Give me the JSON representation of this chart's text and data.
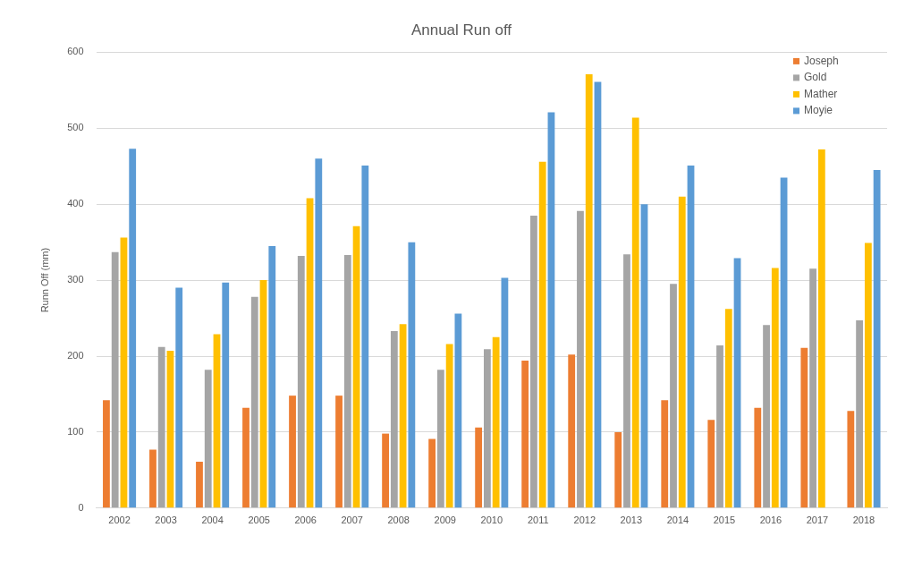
{
  "chart_data": {
    "type": "bar",
    "title": "Annual Run off",
    "ylabel": "Runn Off (mm)",
    "categories": [
      "2002",
      "2003",
      "2004",
      "2005",
      "2006",
      "2007",
      "2008",
      "2009",
      "2010",
      "2011",
      "2012",
      "2013",
      "2014",
      "2015",
      "2016",
      "2017",
      "2018"
    ],
    "series": [
      {
        "name": "Joseph",
        "color": "#ed7d31",
        "values": [
          142,
          77,
          61,
          132,
          148,
          148,
          98,
          91,
          106,
          194,
          202,
          100,
          142,
          116,
          132,
          211,
          128
        ]
      },
      {
        "name": "Gold",
        "color": "#a5a5a5",
        "values": [
          337,
          212,
          182,
          278,
          332,
          333,
          233,
          182,
          209,
          385,
          391,
          334,
          295,
          214,
          241,
          315,
          247
        ]
      },
      {
        "name": "Mather",
        "color": "#ffc000",
        "values": [
          356,
          207,
          229,
          300,
          408,
          371,
          242,
          216,
          225,
          456,
          571,
          514,
          410,
          262,
          316,
          472,
          349
        ]
      },
      {
        "name": "Moyie",
        "color": "#5b9bd5",
        "values": [
          473,
          290,
          297,
          345,
          460,
          451,
          350,
          256,
          303,
          521,
          561,
          400,
          451,
          329,
          435,
          null,
          445
        ]
      }
    ],
    "ylim": [
      0,
      600
    ],
    "yticks": [
      0,
      100,
      200,
      300,
      400,
      500,
      600
    ],
    "grid": "y",
    "legend": "top right"
  }
}
